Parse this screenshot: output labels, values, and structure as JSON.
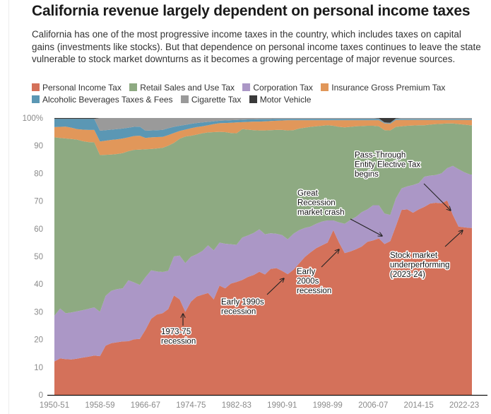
{
  "header": {
    "title": "California revenue largely dependent on personal income taxes",
    "subtitle": "California has one of the most progressive income taxes in the country, which includes taxes on capital gains (investments like stocks). But that dependence on personal income taxes continues to leave the state vulnerable to stock market downturns as it becomes a growing percentage of major revenue sources."
  },
  "chart_data": {
    "type": "area",
    "stacked": true,
    "title": "California revenue largely dependent on personal income taxes",
    "xlabel": "",
    "ylabel": "",
    "ylim": [
      0,
      100
    ],
    "y_ticks": [
      "0",
      "10",
      "20",
      "30",
      "40",
      "50",
      "60",
      "70",
      "80",
      "90",
      "100%"
    ],
    "y_tick_values": [
      0,
      10,
      20,
      30,
      40,
      50,
      60,
      70,
      80,
      90,
      100
    ],
    "x_tick_labels": [
      "1950-51",
      "1958-59",
      "1966-67",
      "1974-75",
      "1982-83",
      "1990-91",
      "1998-99",
      "2006-07",
      "2014-15",
      "2022-23"
    ],
    "x_tick_years": [
      1950,
      1958,
      1966,
      1974,
      1982,
      1990,
      1998,
      2006,
      2014,
      2022
    ],
    "grid": false,
    "legend_position": "top",
    "x_start_year": 1950,
    "x_end_year": 2023,
    "series": [
      {
        "name": "Personal Income Tax",
        "color": "#d4715a",
        "values": [
          12.1,
          13.2,
          12.9,
          12.8,
          13.1,
          13.5,
          13.8,
          14.2,
          14.0,
          17.8,
          18.7,
          19.0,
          19.3,
          19.4,
          20.1,
          20.2,
          23.5,
          27.5,
          29.0,
          29.5,
          31.0,
          35.9,
          34.5,
          30.0,
          33.7,
          35.5,
          36.2,
          36.8,
          34.5,
          39.5,
          38.5,
          40.2,
          40.8,
          41.5,
          42.6,
          43.3,
          44.5,
          43.5,
          45.5,
          45.8,
          44.8,
          43.6,
          45.2,
          47.5,
          49.8,
          51.5,
          53.0,
          54.0,
          55.0,
          59.5,
          55.0,
          51.2,
          51.8,
          52.6,
          53.6,
          55.3,
          55.8,
          56.5,
          54.5,
          55.5,
          61.0,
          66.8,
          67.0,
          65.8,
          67.0,
          67.9,
          69.1,
          69.4,
          69.2,
          70.2,
          65.0,
          60.8,
          60.5,
          60.3
        ]
      },
      {
        "name": "Corporation Tax",
        "color": "#ab97c6",
        "values": [
          16.5,
          18.0,
          16.6,
          17.0,
          17.1,
          17.1,
          17.3,
          17.4,
          16.0,
          18.0,
          18.9,
          19.2,
          19.2,
          22.0,
          20.5,
          19.5,
          19.0,
          17.5,
          15.6,
          14.9,
          13.8,
          14.1,
          15.8,
          17.6,
          16.2,
          15.3,
          15.8,
          17.2,
          17.7,
          15.5,
          16.1,
          14.2,
          13.4,
          15.3,
          15.0,
          15.2,
          15.3,
          14.5,
          12.9,
          12.4,
          12.9,
          12.6,
          13.0,
          12.0,
          10.5,
          9.3,
          8.8,
          8.6,
          8.0,
          3.5,
          7.3,
          10.6,
          11.4,
          11.7,
          12.4,
          11.7,
          12.7,
          12.0,
          11.0,
          9.5,
          10.0,
          7.8,
          8.3,
          10.0,
          9.5,
          10.9,
          10.1,
          10.0,
          10.8,
          11.7,
          17.7,
          20.7,
          19.9,
          19.3
        ]
      },
      {
        "name": "Retail Sales and Use Tax",
        "color": "#8eaa82",
        "values": [
          64.4,
          61.6,
          63.1,
          62.6,
          62.0,
          61.0,
          60.2,
          59.6,
          56.6,
          50.9,
          49.2,
          48.8,
          48.8,
          46.6,
          47.9,
          48.9,
          46.2,
          43.8,
          44.4,
          44.8,
          45.2,
          41.0,
          42.2,
          45.7,
          43.7,
          43.2,
          42.5,
          40.8,
          42.7,
          40.0,
          40.3,
          40.2,
          40.3,
          39.2,
          38.2,
          37.1,
          35.7,
          37.5,
          37.2,
          37.5,
          38.0,
          39.3,
          37.4,
          36.7,
          36.2,
          36.0,
          35.2,
          34.6,
          34.4,
          34.2,
          34.5,
          34.8,
          33.6,
          32.7,
          31.1,
          30.2,
          28.7,
          28.5,
          30.1,
          30.5,
          25.8,
          22.4,
          21.9,
          21.5,
          20.9,
          18.6,
          18.4,
          18.4,
          17.9,
          16.1,
          15.3,
          16.3,
          17.2,
          17.8
        ]
      },
      {
        "name": "Insurance Gross Premium Tax",
        "color": "#e1975a",
        "values": [
          3.7,
          4.0,
          4.3,
          4.1,
          3.8,
          4.2,
          4.4,
          4.5,
          4.9,
          5.1,
          5.3,
          5.3,
          5.3,
          5.0,
          5.0,
          5.0,
          4.1,
          4.2,
          4.1,
          4.0,
          3.8,
          3.6,
          2.8,
          2.5,
          2.7,
          2.7,
          2.5,
          2.6,
          2.9,
          3.1,
          3.3,
          3.7,
          3.9,
          2.5,
          2.8,
          3.1,
          3.2,
          3.3,
          3.3,
          3.3,
          3.4,
          3.7,
          3.6,
          3.0,
          2.7,
          2.4,
          2.2,
          2.0,
          1.8,
          2.0,
          2.4,
          2.6,
          2.4,
          2.2,
          2.1,
          2.0,
          2.0,
          2.2,
          2.4,
          2.4,
          2.5,
          2.3,
          2.1,
          2.0,
          1.9,
          1.9,
          1.7,
          1.5,
          1.4,
          1.3,
          1.3,
          1.5,
          1.7,
          1.9
        ]
      },
      {
        "name": "Alcoholic Beverages Taxes & Fees",
        "color": "#5b97b4",
        "values": [
          3.0,
          2.9,
          2.8,
          3.2,
          3.7,
          3.9,
          4.0,
          4.0,
          3.9,
          3.8,
          3.7,
          3.7,
          3.6,
          3.5,
          3.3,
          3.3,
          2.6,
          2.5,
          2.5,
          2.5,
          2.5,
          2.2,
          1.9,
          1.7,
          1.6,
          1.5,
          1.4,
          1.2,
          1.0,
          0.9,
          0.9,
          0.9,
          0.9,
          0.9,
          0.9,
          0.8,
          0.9,
          0.8,
          0.7,
          0.7,
          0.6,
          0.5,
          0.5,
          0.5,
          0.5,
          0.5,
          0.5,
          0.5,
          0.5,
          0.5,
          0.5,
          0.5,
          0.5,
          0.5,
          0.5,
          0.5,
          0.5,
          0.5,
          0.2,
          0.2,
          0.4,
          0.4,
          0.4,
          0.4,
          0.4,
          0.4,
          0.4,
          0.4,
          0.4,
          0.4,
          0.4,
          0.4,
          0.4,
          0.4
        ]
      },
      {
        "name": "Cigarette Tax",
        "color": "#9a9a9a",
        "values": [
          0,
          0,
          0,
          0,
          0,
          0,
          0,
          0,
          4.6,
          4.4,
          4.2,
          4.0,
          3.8,
          3.5,
          3.2,
          3.1,
          4.6,
          4.5,
          4.4,
          4.3,
          3.7,
          3.2,
          2.8,
          2.5,
          2.1,
          1.8,
          1.6,
          1.4,
          1.2,
          1.0,
          0.9,
          0.8,
          0.7,
          0.6,
          0.5,
          0.5,
          0.4,
          0.4,
          0.4,
          0.3,
          0.3,
          0.3,
          0.3,
          0.3,
          0.3,
          0.3,
          0.3,
          0.3,
          0.3,
          0.3,
          0.3,
          0.3,
          0.3,
          0.3,
          0.3,
          0.3,
          0.3,
          0.1,
          0.2,
          0.2,
          0.1,
          0.3,
          0.3,
          0.3,
          0.3,
          0.3,
          0.3,
          0.3,
          0.3,
          0.3,
          0.3,
          0.3,
          0.3,
          0.3
        ]
      },
      {
        "name": "Motor Vehicle",
        "color": "#3a3a3a",
        "values": [
          0.3,
          0.3,
          0.3,
          0.3,
          0.3,
          0.3,
          0.3,
          0.3,
          0,
          0,
          0,
          0,
          0,
          0,
          0,
          0,
          0,
          0,
          0,
          0,
          0,
          0,
          0,
          0,
          0,
          0,
          0,
          0,
          0,
          0,
          0,
          0,
          0,
          0,
          0,
          0,
          0,
          0,
          0,
          0,
          0,
          0,
          0,
          0,
          0,
          0,
          0,
          0,
          0,
          0,
          0,
          0,
          0,
          0,
          0,
          0,
          0,
          0.2,
          1.6,
          1.7,
          0.2,
          0,
          0,
          0,
          0,
          0,
          0,
          0,
          0,
          0,
          0,
          0,
          0,
          0
        ]
      }
    ],
    "annotations": [
      {
        "text_lines": [
          "1973-75",
          "recession"
        ],
        "target_year": 1973,
        "target_value": 30.0
      },
      {
        "text_lines": [
          "Early 1990s",
          "recession"
        ],
        "target_year": 1991,
        "target_value": 43.8
      },
      {
        "text_lines": [
          "Early",
          "2000s",
          "recession"
        ],
        "target_year": 2000,
        "target_value": 52.5
      },
      {
        "text_lines": [
          "Great",
          "Recession",
          "market crash"
        ],
        "target_year": 2008,
        "target_value": 57
      },
      {
        "text_lines": [
          "Pass-Through",
          "Entity Elective Tax",
          "begins"
        ],
        "target_year": 2019.5,
        "target_value": 66
      },
      {
        "text_lines": [
          "Stock market",
          "underperforming",
          "(2023-24)"
        ],
        "target_year": 2022,
        "target_value": 59
      }
    ]
  },
  "legend": {
    "items": [
      {
        "label": "Personal Income Tax",
        "color": "#d4715a"
      },
      {
        "label": "Retail Sales and Use Tax",
        "color": "#8eaa82"
      },
      {
        "label": "Corporation Tax",
        "color": "#ab97c6"
      },
      {
        "label": "Insurance Gross Premium Tax",
        "color": "#e1975a"
      },
      {
        "label": "Alcoholic Beverages Taxes & Fees",
        "color": "#5b97b4"
      },
      {
        "label": "Cigarette Tax",
        "color": "#9a9a9a"
      },
      {
        "label": "Motor Vehicle",
        "color": "#3a3a3a"
      }
    ]
  }
}
